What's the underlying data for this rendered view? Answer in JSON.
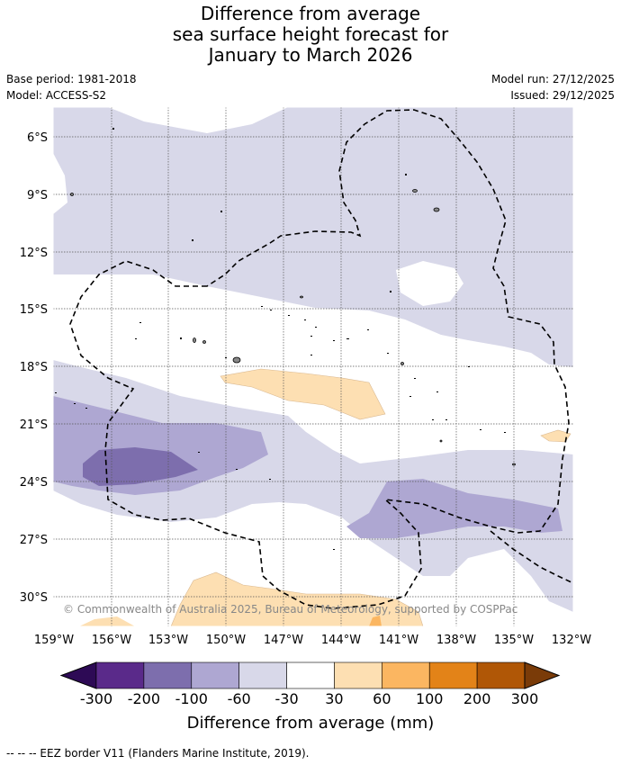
{
  "title": {
    "line1": "Difference from average",
    "line2": "sea surface height forecast for",
    "line3": "January to March 2026"
  },
  "meta": {
    "base_period": "Base period: 1981-2018",
    "model": "Model: ACCESS-S2",
    "model_run": "Model run: 27/12/2025",
    "issued": "Issued: 29/12/2025"
  },
  "map": {
    "lat_labels": [
      "6°S",
      "9°S",
      "12°S",
      "15°S",
      "18°S",
      "21°S",
      "24°S",
      "27°S",
      "30°S"
    ],
    "lon_labels": [
      "159°W",
      "156°W",
      "153°W",
      "150°W",
      "147°W",
      "144°W",
      "141°W",
      "138°W",
      "135°W",
      "132°W"
    ],
    "copyright": "© Commonwealth of Australia 2025, Bureau of Meteorology, supported by COSPPac"
  },
  "colorbar": {
    "ticks": [
      "-300",
      "-200",
      "-100",
      "-60",
      "-30",
      "30",
      "60",
      "100",
      "200",
      "300"
    ],
    "label": "Difference from average (mm)",
    "colors": {
      "below": "#2d0a55",
      "bins": [
        "#5a2a8a",
        "#7d6ead",
        "#aea7d2",
        "#d8d8e9",
        "#ffffff",
        "#fddfb2",
        "#fbb661",
        "#e38318",
        "#b05706"
      ],
      "above": "#7a3b08"
    }
  },
  "footer": {
    "legend": "-- -- -- EEZ border V11 (Flanders Marine Institute, 2019)."
  }
}
